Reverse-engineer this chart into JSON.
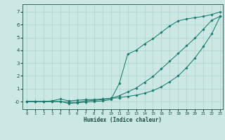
{
  "xlabel": "Humidex (Indice chaleur)",
  "bg_color": "#cce8e4",
  "grid_color": "#b0d8d0",
  "line_color": "#1a7a6e",
  "xlim": [
    -0.5,
    23.3
  ],
  "ylim": [
    -0.6,
    7.6
  ],
  "xticks": [
    0,
    1,
    2,
    3,
    4,
    5,
    6,
    7,
    8,
    9,
    10,
    11,
    12,
    13,
    14,
    15,
    16,
    17,
    18,
    19,
    20,
    21,
    22,
    23
  ],
  "yticks": [
    0,
    1,
    2,
    3,
    4,
    5,
    6,
    7
  ],
  "line1_x": [
    0,
    1,
    2,
    3,
    4,
    5,
    6,
    7,
    8,
    9,
    10,
    11,
    12,
    13,
    14,
    15,
    16,
    17,
    18,
    19,
    20,
    21,
    22,
    23
  ],
  "line1_y": [
    0,
    0,
    0,
    0,
    0,
    -0.15,
    -0.1,
    -0.05,
    0,
    0.05,
    0.15,
    1.4,
    3.7,
    4.0,
    4.5,
    4.9,
    5.4,
    5.9,
    6.3,
    6.45,
    6.55,
    6.65,
    6.8,
    7.0
  ],
  "line2_x": [
    0,
    1,
    2,
    3,
    4,
    5,
    6,
    7,
    8,
    9,
    10,
    11,
    12,
    13,
    14,
    15,
    16,
    17,
    18,
    19,
    20,
    21,
    22,
    23
  ],
  "line2_y": [
    0,
    0,
    0,
    0,
    0,
    -0.05,
    -0.05,
    0.05,
    0.1,
    0.15,
    0.25,
    0.45,
    0.75,
    1.05,
    1.5,
    1.95,
    2.55,
    3.15,
    3.75,
    4.35,
    4.95,
    5.65,
    6.35,
    6.65
  ],
  "line3_x": [
    0,
    1,
    2,
    3,
    4,
    5,
    6,
    7,
    8,
    9,
    10,
    11,
    12,
    13,
    14,
    15,
    16,
    17,
    18,
    19,
    20,
    21,
    22,
    23
  ],
  "line3_y": [
    0,
    0,
    0,
    0.05,
    0.2,
    0.05,
    0.1,
    0.15,
    0.15,
    0.2,
    0.25,
    0.3,
    0.4,
    0.5,
    0.65,
    0.85,
    1.15,
    1.55,
    2.0,
    2.65,
    3.4,
    4.3,
    5.3,
    6.65
  ]
}
